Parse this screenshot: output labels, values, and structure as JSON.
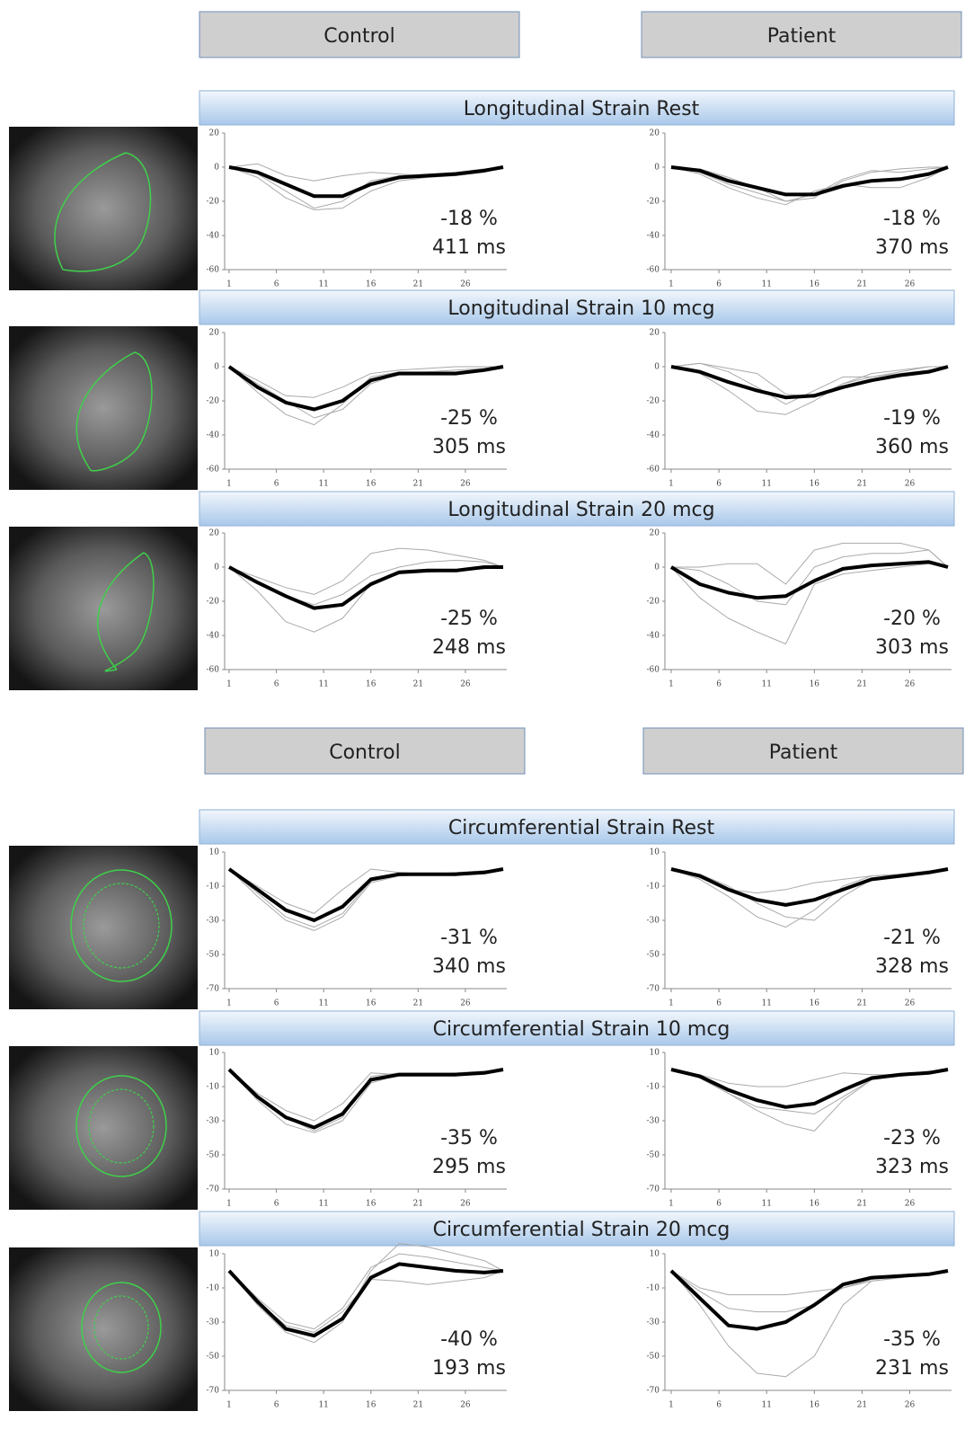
{
  "sections": [
    {
      "headers": [
        "Control",
        "Patient"
      ]
    },
    {
      "headers": [
        "Control",
        "Patient"
      ]
    }
  ],
  "row_titles": [
    "Longitudinal Strain Rest",
    "Longitudinal Strain 10 mcg",
    "Longitudinal Strain 20 mcg",
    "Circumferential Strain Rest",
    "Circumferential Strain 10 mcg",
    "Circumferential Strain 20 mcg"
  ],
  "chart_data": [
    {
      "type": "line",
      "annotations": [
        "-18 %",
        "411 ms"
      ],
      "x": [
        1,
        4,
        7,
        10,
        13,
        16,
        19,
        22,
        25,
        28,
        30
      ],
      "xlim": [
        1,
        30
      ],
      "xticks": [
        1,
        6,
        11,
        16,
        21,
        26
      ],
      "ylim": [
        -60,
        20
      ],
      "yticks": [
        20,
        0,
        -20,
        -40,
        -60
      ],
      "series": [
        {
          "color": "#000000",
          "values": [
            0,
            -3,
            -10,
            -17,
            -17,
            -10,
            -6,
            -5,
            -4,
            -2,
            0
          ]
        },
        {
          "color": "#aaaaaa",
          "values": [
            0,
            -6,
            -18,
            -25,
            -24,
            -14,
            -8,
            -6,
            -5,
            -3,
            0
          ]
        },
        {
          "color": "#aaaaaa",
          "values": [
            0,
            2,
            -5,
            -8,
            -5,
            -3,
            -4,
            -5,
            -5,
            -3,
            0
          ]
        },
        {
          "color": "#aaaaaa",
          "values": [
            0,
            -4,
            -14,
            -24,
            -20,
            -8,
            -5,
            -4,
            -3,
            -1,
            0
          ]
        }
      ]
    },
    {
      "type": "line",
      "annotations": [
        "-18 %",
        "370 ms"
      ],
      "x": [
        1,
        4,
        7,
        10,
        13,
        16,
        19,
        22,
        25,
        28,
        30
      ],
      "xlim": [
        1,
        30
      ],
      "xticks": [
        1,
        6,
        11,
        16,
        21,
        26
      ],
      "ylim": [
        -60,
        20
      ],
      "yticks": [
        20,
        0,
        -20,
        -40,
        -60
      ],
      "series": [
        {
          "color": "#000000",
          "values": [
            0,
            -2,
            -8,
            -12,
            -16,
            -16,
            -11,
            -8,
            -7,
            -4,
            0
          ]
        },
        {
          "color": "#aaaaaa",
          "values": [
            0,
            -3,
            -10,
            -15,
            -20,
            -18,
            -8,
            -3,
            -1,
            0,
            0
          ]
        },
        {
          "color": "#aaaaaa",
          "values": [
            0,
            -4,
            -12,
            -18,
            -22,
            -14,
            -10,
            -12,
            -12,
            -6,
            0
          ]
        },
        {
          "color": "#aaaaaa",
          "values": [
            0,
            -1,
            -6,
            -12,
            -20,
            -16,
            -7,
            -2,
            -3,
            -1,
            0
          ]
        }
      ]
    },
    {
      "type": "line",
      "annotations": [
        "-25 %",
        "305 ms"
      ],
      "x": [
        1,
        4,
        7,
        10,
        13,
        16,
        19,
        22,
        25,
        28,
        30
      ],
      "xlim": [
        1,
        30
      ],
      "xticks": [
        1,
        6,
        11,
        16,
        21,
        26
      ],
      "ylim": [
        -60,
        20
      ],
      "yticks": [
        20,
        0,
        -20,
        -40,
        -60
      ],
      "series": [
        {
          "color": "#000000",
          "values": [
            0,
            -12,
            -21,
            -25,
            -20,
            -8,
            -4,
            -4,
            -4,
            -2,
            0
          ]
        },
        {
          "color": "#aaaaaa",
          "values": [
            0,
            -15,
            -28,
            -34,
            -22,
            -6,
            -3,
            -3,
            -3,
            -1,
            0
          ]
        },
        {
          "color": "#aaaaaa",
          "values": [
            0,
            -10,
            -20,
            -30,
            -25,
            -10,
            -4,
            -3,
            -2,
            -1,
            0
          ]
        },
        {
          "color": "#aaaaaa",
          "values": [
            0,
            -8,
            -17,
            -18,
            -12,
            -4,
            -2,
            -1,
            0,
            0,
            0
          ]
        }
      ]
    },
    {
      "type": "line",
      "annotations": [
        "-19 %",
        "360 ms"
      ],
      "x": [
        1,
        4,
        7,
        10,
        13,
        16,
        19,
        22,
        25,
        28,
        30
      ],
      "xlim": [
        1,
        30
      ],
      "xticks": [
        1,
        6,
        11,
        16,
        21,
        26
      ],
      "ylim": [
        -60,
        20
      ],
      "yticks": [
        20,
        0,
        -20,
        -40,
        -60
      ],
      "series": [
        {
          "color": "#000000",
          "values": [
            0,
            -3,
            -9,
            -14,
            -18,
            -17,
            -12,
            -8,
            -5,
            -3,
            0
          ]
        },
        {
          "color": "#aaaaaa",
          "values": [
            0,
            2,
            -3,
            -12,
            -22,
            -14,
            -6,
            -6,
            -3,
            0,
            0
          ]
        },
        {
          "color": "#aaaaaa",
          "values": [
            0,
            2,
            -1,
            -4,
            -16,
            -18,
            -10,
            -4,
            -2,
            0,
            0
          ]
        },
        {
          "color": "#aaaaaa",
          "values": [
            0,
            -4,
            -14,
            -26,
            -28,
            -20,
            -10,
            -6,
            -4,
            -2,
            0
          ]
        }
      ]
    },
    {
      "type": "line",
      "annotations": [
        "-25 %",
        "248 ms"
      ],
      "x": [
        1,
        4,
        7,
        10,
        13,
        16,
        19,
        22,
        25,
        28,
        30
      ],
      "xlim": [
        1,
        30
      ],
      "xticks": [
        1,
        6,
        11,
        16,
        21,
        26
      ],
      "ylim": [
        -60,
        20
      ],
      "yticks": [
        20,
        0,
        -20,
        -40,
        -60
      ],
      "series": [
        {
          "color": "#000000",
          "values": [
            0,
            -9,
            -17,
            -24,
            -22,
            -10,
            -3,
            -2,
            -2,
            0,
            0
          ]
        },
        {
          "color": "#aaaaaa",
          "values": [
            0,
            -14,
            -32,
            -38,
            -30,
            -10,
            -4,
            -3,
            -2,
            -1,
            0
          ]
        },
        {
          "color": "#aaaaaa",
          "values": [
            0,
            -6,
            -12,
            -16,
            -8,
            8,
            11,
            10,
            7,
            4,
            0
          ]
        },
        {
          "color": "#aaaaaa",
          "values": [
            0,
            -9,
            -17,
            -22,
            -16,
            -5,
            0,
            3,
            4,
            3,
            0
          ]
        }
      ]
    },
    {
      "type": "line",
      "annotations": [
        "-20 %",
        "303 ms"
      ],
      "x": [
        1,
        4,
        7,
        10,
        13,
        16,
        19,
        22,
        25,
        28,
        30
      ],
      "xlim": [
        1,
        30
      ],
      "xticks": [
        1,
        6,
        11,
        16,
        21,
        26
      ],
      "ylim": [
        -60,
        20
      ],
      "yticks": [
        20,
        0,
        -20,
        -40,
        -60
      ],
      "series": [
        {
          "color": "#000000",
          "values": [
            0,
            -10,
            -15,
            -18,
            -17,
            -8,
            -1,
            1,
            2,
            3,
            0
          ]
        },
        {
          "color": "#aaaaaa",
          "values": [
            0,
            -18,
            -30,
            -38,
            -45,
            -10,
            -4,
            -2,
            0,
            2,
            0
          ]
        },
        {
          "color": "#aaaaaa",
          "values": [
            0,
            0,
            2,
            2,
            -10,
            10,
            14,
            14,
            14,
            10,
            0
          ]
        },
        {
          "color": "#aaaaaa",
          "values": [
            0,
            -2,
            -10,
            -20,
            -22,
            0,
            6,
            8,
            8,
            10,
            0
          ]
        }
      ]
    },
    {
      "type": "line",
      "annotations": [
        "-31 %",
        "340 ms"
      ],
      "x": [
        1,
        4,
        7,
        10,
        13,
        16,
        19,
        22,
        25,
        28,
        30
      ],
      "xlim": [
        1,
        30
      ],
      "xticks": [
        1,
        6,
        11,
        16,
        21,
        26
      ],
      "ylim": [
        -70,
        10
      ],
      "yticks": [
        10,
        -10,
        -30,
        -50,
        -70
      ],
      "series": [
        {
          "color": "#000000",
          "values": [
            0,
            -12,
            -24,
            -30,
            -22,
            -6,
            -3,
            -3,
            -3,
            -2,
            0
          ]
        },
        {
          "color": "#aaaaaa",
          "values": [
            0,
            -16,
            -30,
            -36,
            -28,
            -8,
            -4,
            -3,
            -3,
            -2,
            0
          ]
        },
        {
          "color": "#aaaaaa",
          "values": [
            0,
            -10,
            -20,
            -26,
            -12,
            0,
            -2,
            -3,
            -3,
            -1,
            0
          ]
        },
        {
          "color": "#aaaaaa",
          "values": [
            0,
            -14,
            -28,
            -34,
            -26,
            -7,
            -4,
            -3,
            -2,
            -1,
            0
          ]
        }
      ]
    },
    {
      "type": "line",
      "annotations": [
        "-21 %",
        "328 ms"
      ],
      "x": [
        1,
        4,
        7,
        10,
        13,
        16,
        19,
        22,
        25,
        28,
        30
      ],
      "xlim": [
        1,
        30
      ],
      "xticks": [
        1,
        6,
        11,
        16,
        21,
        26
      ],
      "ylim": [
        -70,
        10
      ],
      "yticks": [
        10,
        -10,
        -30,
        -50,
        -70
      ],
      "series": [
        {
          "color": "#000000",
          "values": [
            0,
            -4,
            -12,
            -18,
            -21,
            -18,
            -12,
            -6,
            -4,
            -2,
            0
          ]
        },
        {
          "color": "#aaaaaa",
          "values": [
            0,
            -6,
            -16,
            -28,
            -34,
            -24,
            -10,
            -4,
            -3,
            -2,
            0
          ]
        },
        {
          "color": "#aaaaaa",
          "values": [
            0,
            -5,
            -12,
            -14,
            -12,
            -8,
            -6,
            -4,
            -3,
            -2,
            0
          ]
        },
        {
          "color": "#aaaaaa",
          "values": [
            0,
            -3,
            -10,
            -20,
            -28,
            -30,
            -16,
            -6,
            -3,
            -1,
            0
          ]
        }
      ]
    },
    {
      "type": "line",
      "annotations": [
        "-35 %",
        "295 ms"
      ],
      "x": [
        1,
        4,
        7,
        10,
        13,
        16,
        19,
        22,
        25,
        28,
        30
      ],
      "xlim": [
        1,
        30
      ],
      "xticks": [
        1,
        6,
        11,
        16,
        21,
        26
      ],
      "ylim": [
        -70,
        10
      ],
      "yticks": [
        10,
        -10,
        -30,
        -50,
        -70
      ],
      "series": [
        {
          "color": "#000000",
          "values": [
            0,
            -16,
            -28,
            -34,
            -26,
            -6,
            -3,
            -3,
            -3,
            -2,
            0
          ]
        },
        {
          "color": "#aaaaaa",
          "values": [
            0,
            -18,
            -32,
            -37,
            -30,
            -8,
            -3,
            -3,
            -2,
            -1,
            0
          ]
        },
        {
          "color": "#aaaaaa",
          "values": [
            0,
            -14,
            -24,
            -30,
            -20,
            -2,
            -3,
            -3,
            -3,
            -2,
            0
          ]
        },
        {
          "color": "#aaaaaa",
          "values": [
            0,
            -16,
            -28,
            -36,
            -28,
            -4,
            -2,
            -2,
            -2,
            -1,
            0
          ]
        }
      ]
    },
    {
      "type": "line",
      "annotations": [
        "-23 %",
        "323 ms"
      ],
      "x": [
        1,
        4,
        7,
        10,
        13,
        16,
        19,
        22,
        25,
        28,
        30
      ],
      "xlim": [
        1,
        30
      ],
      "xticks": [
        1,
        6,
        11,
        16,
        21,
        26
      ],
      "ylim": [
        -70,
        10
      ],
      "yticks": [
        10,
        -10,
        -30,
        -50,
        -70
      ],
      "series": [
        {
          "color": "#000000",
          "values": [
            0,
            -4,
            -12,
            -18,
            -22,
            -20,
            -12,
            -5,
            -3,
            -2,
            0
          ]
        },
        {
          "color": "#aaaaaa",
          "values": [
            0,
            -5,
            -14,
            -24,
            -32,
            -36,
            -18,
            -6,
            -4,
            -2,
            0
          ]
        },
        {
          "color": "#aaaaaa",
          "values": [
            0,
            -3,
            -8,
            -10,
            -10,
            -6,
            -2,
            -3,
            -3,
            -1,
            0
          ]
        },
        {
          "color": "#aaaaaa",
          "values": [
            0,
            -5,
            -14,
            -22,
            -24,
            -26,
            -16,
            -6,
            -3,
            -1,
            0
          ]
        }
      ]
    },
    {
      "type": "line",
      "annotations": [
        "-40 %",
        "193 ms"
      ],
      "x": [
        1,
        4,
        7,
        10,
        13,
        16,
        19,
        22,
        25,
        28,
        30
      ],
      "xlim": [
        1,
        30
      ],
      "xticks": [
        1,
        6,
        11,
        16,
        21,
        26
      ],
      "ylim": [
        -70,
        10
      ],
      "yticks": [
        10,
        -10,
        -30,
        -50,
        -70
      ],
      "series": [
        {
          "color": "#000000",
          "values": [
            0,
            -18,
            -34,
            -38,
            -28,
            -4,
            4,
            2,
            0,
            -1,
            0
          ]
        },
        {
          "color": "#aaaaaa",
          "values": [
            0,
            -20,
            -36,
            -42,
            -30,
            0,
            16,
            14,
            10,
            6,
            0
          ]
        },
        {
          "color": "#aaaaaa",
          "values": [
            0,
            -18,
            -32,
            -36,
            -24,
            -5,
            -6,
            -8,
            -6,
            -4,
            0
          ]
        },
        {
          "color": "#aaaaaa",
          "values": [
            0,
            -16,
            -30,
            -34,
            -22,
            2,
            10,
            8,
            5,
            2,
            0
          ]
        }
      ]
    },
    {
      "type": "line",
      "annotations": [
        "-35 %",
        "231 ms"
      ],
      "x": [
        1,
        4,
        7,
        10,
        13,
        16,
        19,
        22,
        25,
        28,
        30
      ],
      "xlim": [
        1,
        30
      ],
      "xticks": [
        1,
        6,
        11,
        16,
        21,
        26
      ],
      "ylim": [
        -70,
        10
      ],
      "yticks": [
        10,
        -10,
        -30,
        -50,
        -70
      ],
      "series": [
        {
          "color": "#000000",
          "values": [
            0,
            -16,
            -32,
            -34,
            -30,
            -20,
            -8,
            -4,
            -3,
            -2,
            0
          ]
        },
        {
          "color": "#aaaaaa",
          "values": [
            0,
            -20,
            -44,
            -60,
            -62,
            -50,
            -20,
            -6,
            -4,
            -2,
            0
          ]
        },
        {
          "color": "#aaaaaa",
          "values": [
            0,
            -10,
            -14,
            -14,
            -14,
            -12,
            -10,
            -6,
            -4,
            -2,
            0
          ]
        },
        {
          "color": "#aaaaaa",
          "values": [
            0,
            -12,
            -22,
            -24,
            -24,
            -20,
            -10,
            -5,
            -3,
            -2,
            0
          ]
        }
      ]
    }
  ]
}
